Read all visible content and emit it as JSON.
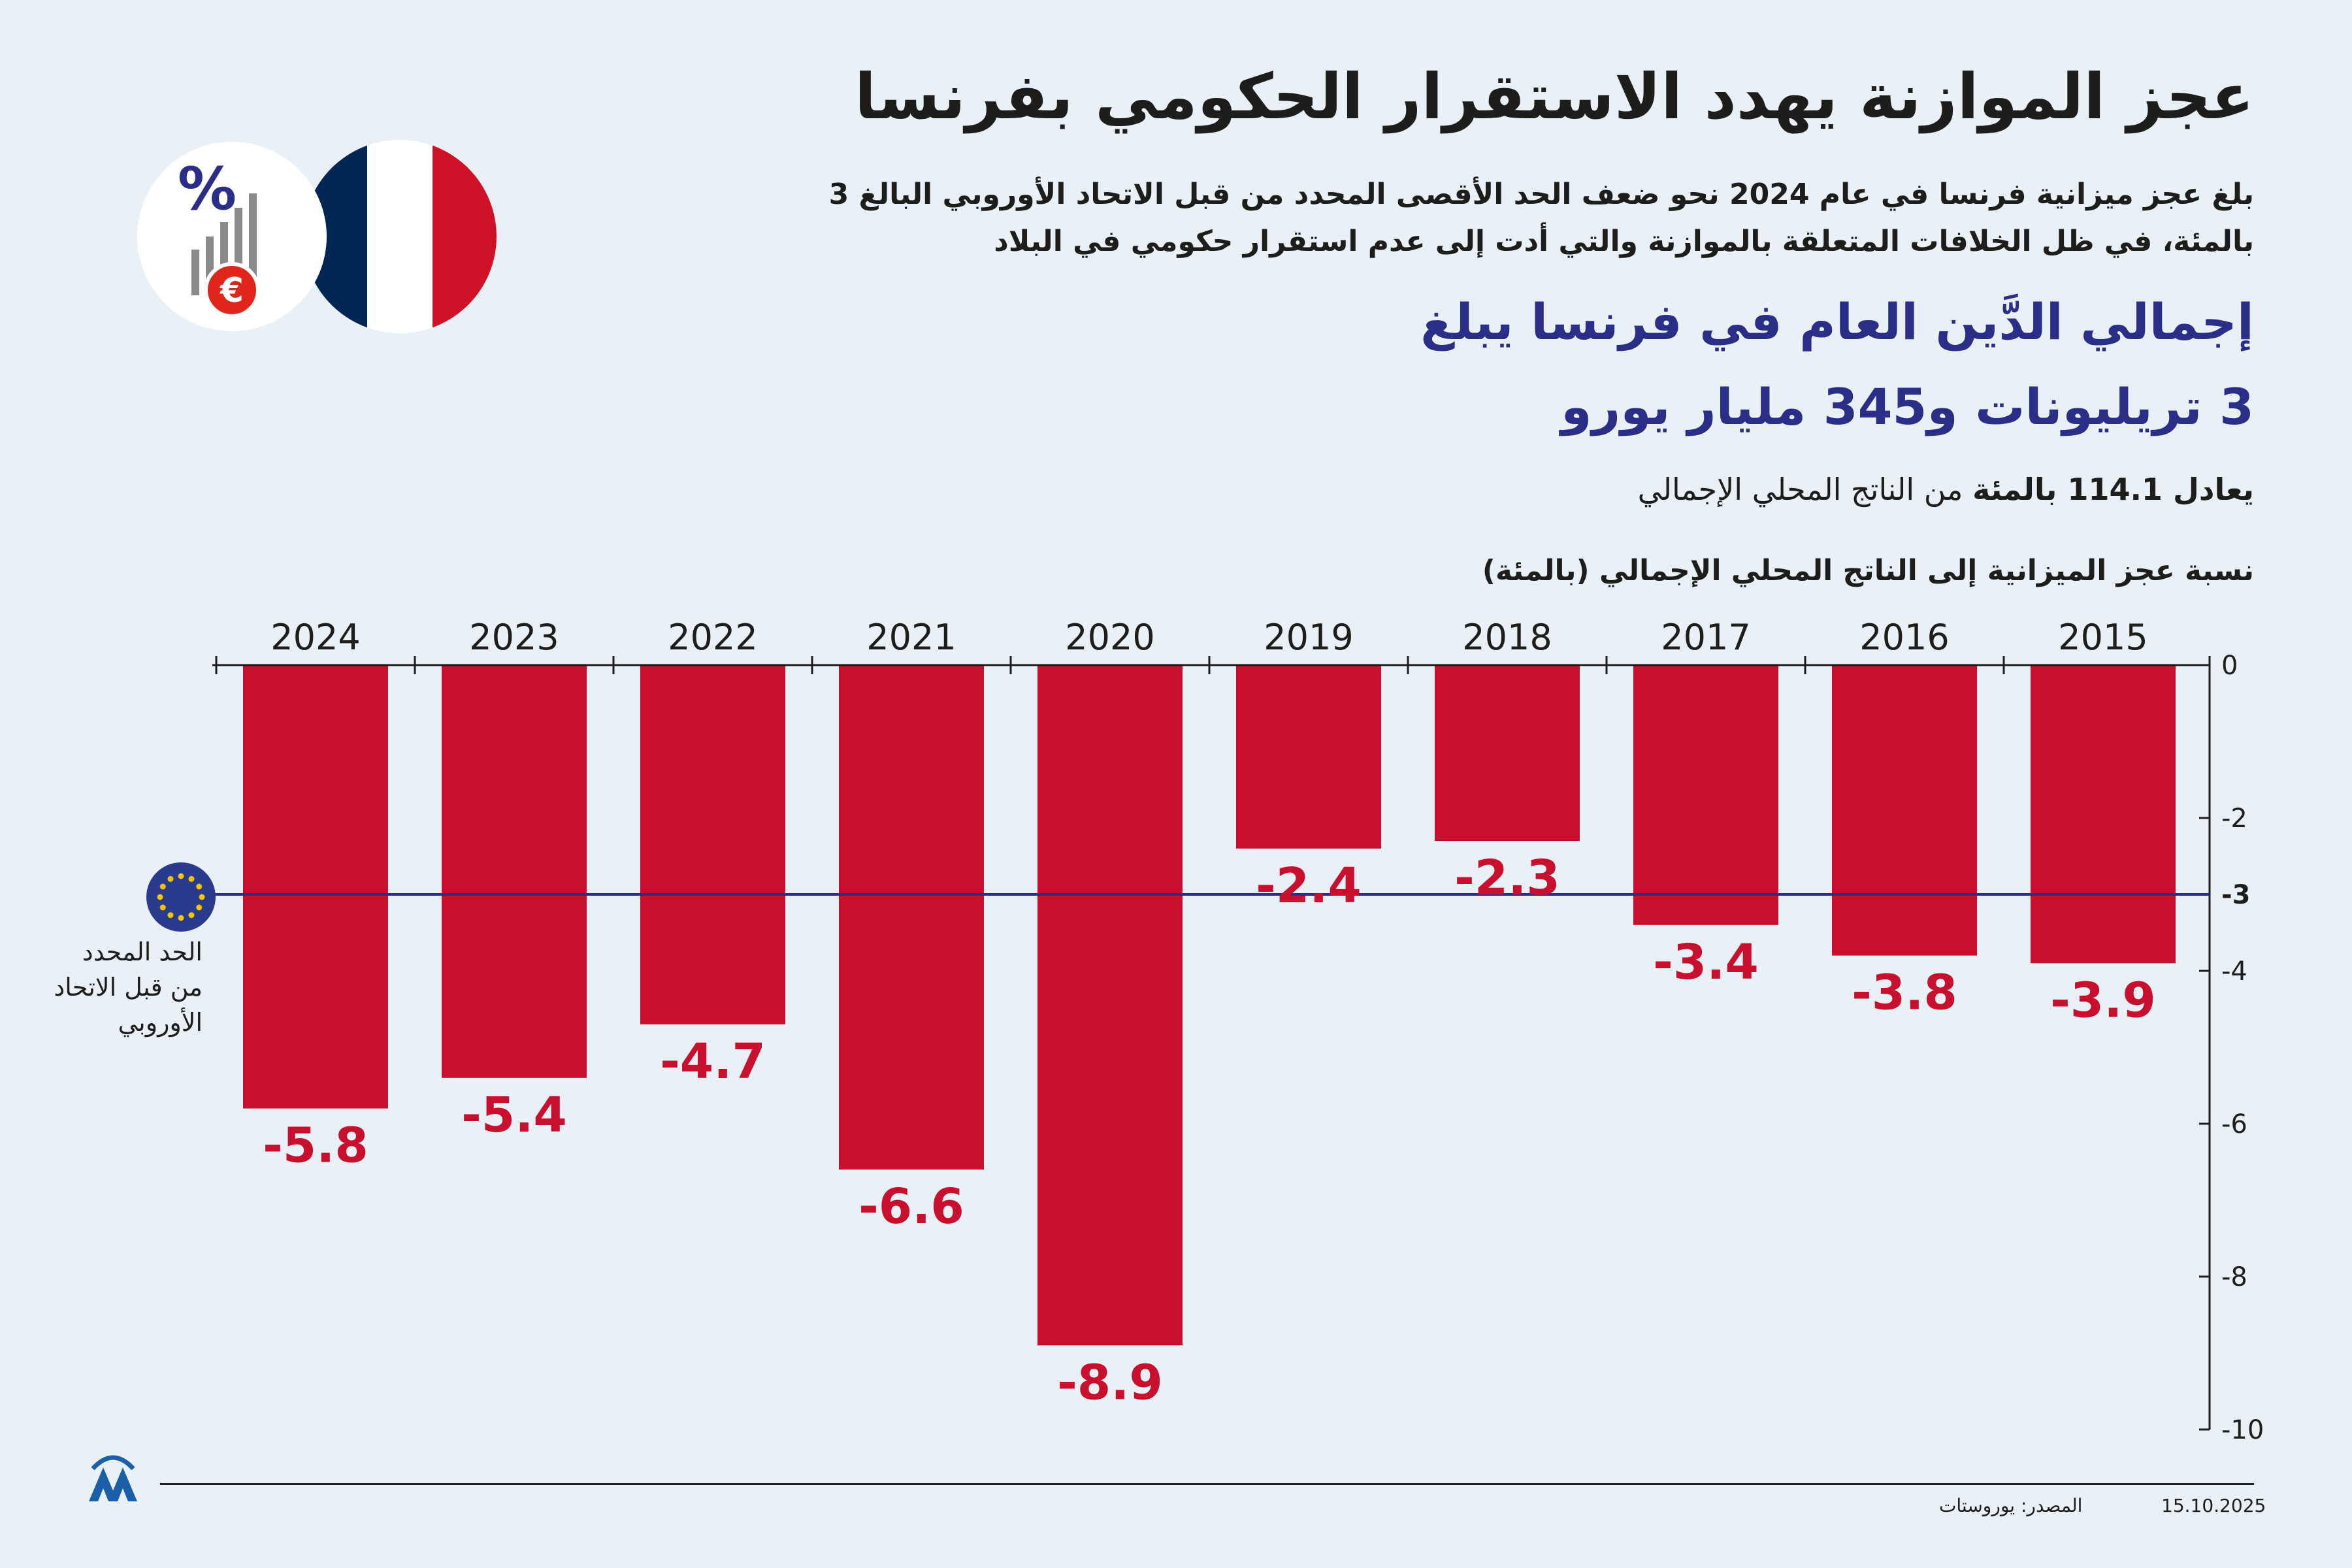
{
  "header": {
    "title": "عجز الموازنة يهدد الاستقرار الحكومي بفرنسا",
    "subtitle": "بلغ عجز ميزانية فرنسا في عام 2024 نحو ضعف الحد الأقصى المحدد من قبل الاتحاد الأوروبي البالغ 3 بالمئة، في ظل الخلافات المتعلقة بالموازنة والتي أدت إلى عدم استقرار حكومي في البلاد",
    "debt_line1": "إجمالي الدَّين العام في فرنسا يبلغ",
    "debt_line2": "3 تريليونات و345 مليار يورو",
    "gdp_prefix": "يعادل ",
    "gdp_value": "114.1 بالمئة",
    "gdp_suffix": " من الناتج المحلي الإجمالي"
  },
  "icons": {
    "flag": "france-flag-icon",
    "budget": "percent-euro-chart-icon",
    "eu": "eu-flag-icon",
    "logo": "aa-logo-icon",
    "percent_symbol": "%",
    "euro_symbol": "€"
  },
  "colors": {
    "bar": "#c8102e",
    "limit_line": "#2a2e86",
    "background": "#e9f1f7",
    "france_blue": "#002654",
    "france_red": "#ce1126",
    "eu_blue": "#2a3a8c",
    "eu_star": "#f2c500",
    "logo": "#1b5fa8"
  },
  "eu_limit": {
    "label_line1": "الحد المحدد",
    "label_line2": "من قبل الاتحاد",
    "label_line3": "الأوروبي"
  },
  "chart_data": {
    "type": "bar",
    "title": "نسبة عجز الميزانية إلى الناتج المحلي الإجمالي (بالمئة)",
    "categories": [
      "2015",
      "2016",
      "2017",
      "2018",
      "2019",
      "2020",
      "2021",
      "2022",
      "2023",
      "2024"
    ],
    "values": [
      -3.9,
      -3.8,
      -3.4,
      -2.3,
      -2.4,
      -8.9,
      -6.6,
      -4.7,
      -5.4,
      -5.8
    ],
    "value_labels": [
      "-3.9",
      "-3.8",
      "-3.4",
      "-2.3",
      "-2.4",
      "-8.9",
      "-6.6",
      "-4.7",
      "-5.4",
      "-5.8"
    ],
    "category_order": "right-to-left",
    "ylim": [
      -10,
      0
    ],
    "yticks": [
      0,
      -2,
      -3,
      -4,
      -6,
      -8,
      -10
    ],
    "ytick_labels": [
      "0",
      "-2",
      "-3",
      "-4",
      "-6",
      "-8",
      "-10"
    ],
    "highlight_tick": -3,
    "axis_position": "right",
    "reference_line": {
      "value": -3
    }
  },
  "footer": {
    "date": "15.10.2025",
    "source": "المصدر: يوروستات"
  }
}
